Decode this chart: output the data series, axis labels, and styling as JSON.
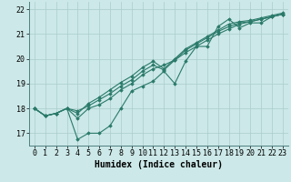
{
  "xlabel": "Humidex (Indice chaleur)",
  "bg_color": "#cce8e8",
  "line_color": "#2a7a6a",
  "grid_color": "#aacccc",
  "xlim": [
    -0.5,
    23.5
  ],
  "ylim": [
    16.5,
    22.3
  ],
  "yticks": [
    17,
    18,
    19,
    20,
    21,
    22
  ],
  "xticks": [
    0,
    1,
    2,
    3,
    4,
    5,
    6,
    7,
    8,
    9,
    10,
    11,
    12,
    13,
    14,
    15,
    16,
    17,
    18,
    19,
    20,
    21,
    22,
    23
  ],
  "series": [
    [
      18.0,
      17.7,
      17.8,
      18.0,
      16.75,
      17.0,
      17.0,
      17.3,
      18.0,
      18.7,
      18.9,
      19.1,
      19.5,
      19.0,
      19.9,
      20.5,
      20.5,
      21.3,
      21.6,
      21.25,
      21.45,
      21.45,
      21.7,
      21.8
    ],
    [
      18.0,
      17.7,
      17.8,
      18.0,
      17.6,
      18.0,
      18.15,
      18.4,
      18.75,
      19.0,
      19.35,
      19.6,
      19.75,
      19.95,
      20.25,
      20.5,
      20.75,
      21.0,
      21.2,
      21.4,
      21.5,
      21.6,
      21.7,
      21.8
    ],
    [
      18.0,
      17.7,
      17.8,
      18.0,
      17.8,
      18.2,
      18.45,
      18.75,
      19.05,
      19.3,
      19.65,
      19.9,
      19.6,
      20.0,
      20.4,
      20.65,
      20.9,
      21.15,
      21.4,
      21.5,
      21.55,
      21.65,
      21.75,
      21.85
    ],
    [
      18.0,
      17.7,
      17.8,
      18.0,
      17.9,
      18.1,
      18.35,
      18.6,
      18.9,
      19.15,
      19.5,
      19.75,
      19.55,
      19.95,
      20.35,
      20.6,
      20.85,
      21.1,
      21.3,
      21.45,
      21.5,
      21.6,
      21.7,
      21.8
    ]
  ],
  "marker": "D",
  "markersize": 1.8,
  "linewidth": 0.8,
  "xlabel_fontsize": 7,
  "tick_fontsize": 6
}
